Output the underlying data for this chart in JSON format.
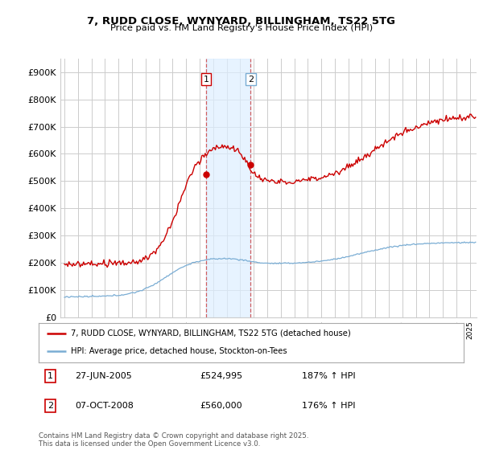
{
  "title": "7, RUDD CLOSE, WYNYARD, BILLINGHAM, TS22 5TG",
  "subtitle": "Price paid vs. HM Land Registry's House Price Index (HPI)",
  "ylim": [
    0,
    950000
  ],
  "yticks": [
    0,
    100000,
    200000,
    300000,
    400000,
    500000,
    600000,
    700000,
    800000,
    900000
  ],
  "ytick_labels": [
    "£0",
    "£100K",
    "£200K",
    "£300K",
    "£400K",
    "£500K",
    "£600K",
    "£700K",
    "£800K",
    "£900K"
  ],
  "hpi_color": "#7aadd4",
  "price_color": "#cc0000",
  "sale1_x": 2005.49,
  "sale1_price": 524995,
  "sale2_x": 2008.77,
  "sale2_price": 560000,
  "legend_line1": "7, RUDD CLOSE, WYNYARD, BILLINGHAM, TS22 5TG (detached house)",
  "legend_line2": "HPI: Average price, detached house, Stockton-on-Tees",
  "footer": "Contains HM Land Registry data © Crown copyright and database right 2025.\nThis data is licensed under the Open Government Licence v3.0.",
  "background_color": "#ffffff",
  "grid_color": "#cccccc",
  "shade_color": "#ddeeff",
  "xlim_left": 1995.0,
  "xlim_right": 2025.5
}
